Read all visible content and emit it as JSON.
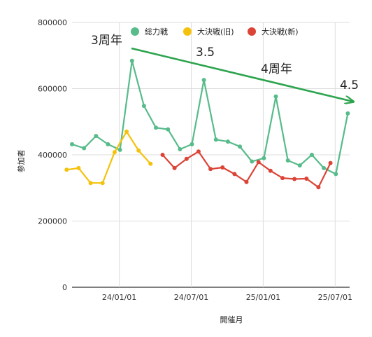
{
  "chart_data": {
    "type": "line",
    "xlabel": "開催月",
    "ylabel": "参加者",
    "ylim": [
      0,
      800000
    ],
    "y_ticks": [
      "0",
      "200000",
      "400000",
      "600000",
      "800000"
    ],
    "x_ticks": [
      {
        "label": "24/01/01",
        "index": 4
      },
      {
        "label": "24/07/01",
        "index": 10
      },
      {
        "label": "25/01/01",
        "index": 16
      },
      {
        "label": "25/07/01",
        "index": 22
      }
    ],
    "grid": true,
    "legend_position": "top",
    "series": [
      {
        "name": "総力戦",
        "color": "#57bb8a",
        "values": [
          432000,
          420000,
          457000,
          432000,
          415000,
          684000,
          548000,
          482000,
          477000,
          417000,
          432000,
          626000,
          446000,
          440000,
          425000,
          380000,
          390000,
          576000,
          383000,
          368000,
          400000,
          360000,
          342000,
          525000
        ]
      },
      {
        "name": "大決戦(旧)",
        "color": "#f4c20d",
        "values": [
          355000,
          360000,
          315000,
          315000,
          408000,
          470000,
          413000,
          373000,
          null,
          null,
          null,
          null,
          null,
          null,
          null,
          null,
          null,
          null,
          null,
          null,
          null,
          null,
          null,
          null
        ],
        "x_offset": -0.45
      },
      {
        "name": "大決戦(新)",
        "color": "#db4437",
        "values": [
          null,
          null,
          null,
          null,
          null,
          null,
          null,
          null,
          400000,
          360000,
          388000,
          410000,
          357000,
          362000,
          342000,
          318000,
          378000,
          352000,
          330000,
          327000,
          328000,
          302000,
          375000,
          null
        ],
        "x_offset": -0.45
      }
    ],
    "annotations": [
      {
        "text": "3周年"
      },
      {
        "text": "3.5"
      },
      {
        "text": "4周年"
      },
      {
        "text": "4.5"
      }
    ],
    "arrow_color": "#2da44e"
  }
}
